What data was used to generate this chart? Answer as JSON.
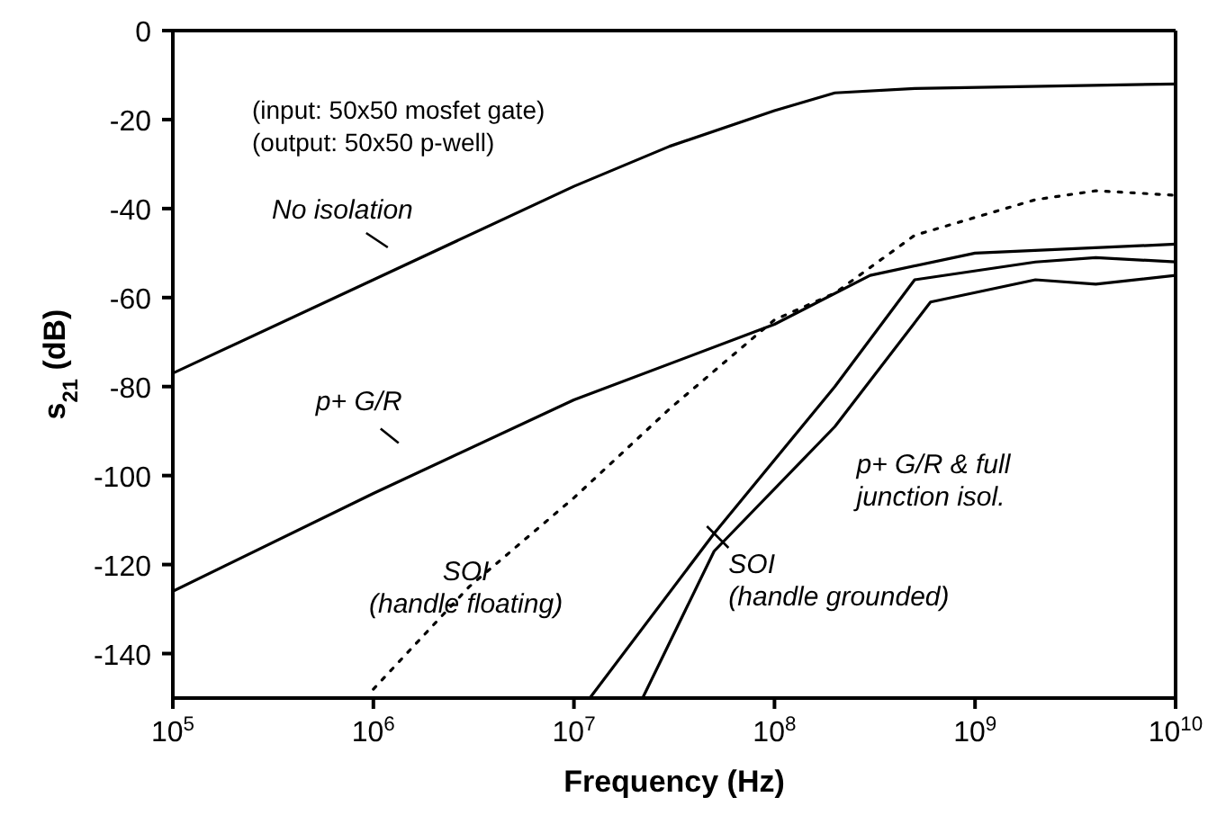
{
  "chart_data": {
    "type": "line",
    "xlabel": "Frequency (Hz)",
    "ylabel": "s$_{21}$ (dB)",
    "annotations": [
      "(input: 50x50 mosfet gate)",
      "(output: 50x50 p-well)"
    ],
    "log": "x",
    "xlim": [
      100000,
      10000000000
    ],
    "xticks": [
      {
        "value": 100000,
        "label": "10$^{5}$"
      },
      {
        "value": 1000000,
        "label": "10$^{6}$"
      },
      {
        "value": 10000000,
        "label": "10$^{7}$"
      },
      {
        "value": 100000000,
        "label": "10$^{8}$"
      },
      {
        "value": 1000000000,
        "label": "10$^{9}$"
      },
      {
        "value": 10000000000,
        "label": "10$^{10}$"
      }
    ],
    "ylim": [
      -150,
      0
    ],
    "yticks": [
      0,
      -20,
      -40,
      -60,
      -80,
      -100,
      -120,
      -140
    ],
    "series": [
      {
        "name": "No isolation",
        "color": "#000000",
        "x": [
          100000,
          1000000,
          10000000,
          30000000,
          100000000,
          200000000,
          500000000,
          10000000000
        ],
        "values": [
          -77,
          -56,
          -35,
          -26,
          -18,
          -14,
          -13,
          -12
        ]
      },
      {
        "name": "p+ G/R",
        "color": "#000000",
        "x": [
          100000,
          1000000,
          10000000,
          100000000,
          300000000,
          1000000000,
          10000000000
        ],
        "values": [
          -126,
          -104,
          -83,
          -66,
          -55,
          -50,
          -48
        ]
      },
      {
        "name": "SOI (handle floating)",
        "color": "#000000",
        "line_style": "dotted",
        "x": [
          1000000,
          3000000,
          10000000,
          30000000,
          100000000,
          200000000,
          500000000,
          2000000000,
          4000000000,
          10000000000
        ],
        "values": [
          -148,
          -125,
          -105,
          -85,
          -65,
          -59,
          -46,
          -38,
          -36,
          -37
        ]
      },
      {
        "name": "SOI (handle grounded)",
        "color": "#000000",
        "x": [
          12000000,
          50000000,
          200000000,
          500000000,
          2000000000,
          4000000000,
          10000000000
        ],
        "values": [
          -150,
          -113,
          -80,
          -56,
          -52,
          -51,
          -52
        ]
      },
      {
        "name": "p+ G/R & full junction isol.",
        "color": "#000000",
        "x": [
          22000000,
          50000000,
          200000000,
          600000000,
          2000000000,
          4000000000,
          10000000000
        ],
        "values": [
          -150,
          -117,
          -89,
          -61,
          -56,
          -57,
          -55
        ]
      }
    ]
  }
}
